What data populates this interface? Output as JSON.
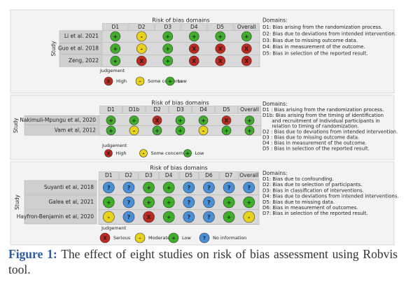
{
  "figure": {
    "panels": [
      {
        "title": "Risk of bias domains",
        "columns": [
          "D1",
          "D2",
          "D3",
          "D4",
          "D5",
          "Overall"
        ],
        "axis_label": "Study",
        "rows": [
          {
            "study": "Li et al. 2021",
            "judgements": [
              "+",
              "-",
              "+",
              "+",
              "+",
              "+"
            ]
          },
          {
            "study": "Guo et al. 2018",
            "judgements": [
              "+",
              "-",
              "+",
              "X",
              "X",
              "X"
            ]
          },
          {
            "study": "Zeng, 2022",
            "judgements": [
              "+",
              "X",
              "+",
              "X",
              "X",
              "X"
            ]
          }
        ],
        "judgement_label": "Judgement",
        "legend": [
          {
            "symbol": "X",
            "label": "High",
            "color": "#c0291f"
          },
          {
            "symbol": "-",
            "label": "Some concerns",
            "color": "#e8d21c"
          },
          {
            "symbol": "+",
            "label": "Low",
            "color": "#3fae2a"
          }
        ],
        "domains_title": "Domains:",
        "domains": [
          "D1: Bias arising from the randomization process.",
          "D2: Bias due to deviations from intended intervention.",
          "D3: Bias due to missing outcome data.",
          "D4: Bias in measurement of the outcome.",
          "D5: Bias in selection of the reported result."
        ]
      },
      {
        "title": "Risk of bias domains",
        "columns": [
          "D1",
          "D1b",
          "D2",
          "D3",
          "D4",
          "D5",
          "Overall"
        ],
        "axis_label": "Study",
        "rows": [
          {
            "study": "Nakimuli-Mpungu et al, 2020",
            "judgements": [
              "+",
              "+",
              "X",
              "+",
              "+",
              "X",
              "+"
            ]
          },
          {
            "study": "Vam et al, 2012",
            "judgements": [
              "+",
              "-",
              "+",
              "+",
              "-",
              "+",
              "+"
            ]
          }
        ],
        "judgement_label": "Judgement",
        "legend": [
          {
            "symbol": "X",
            "label": "High",
            "color": "#c0291f"
          },
          {
            "symbol": "-",
            "label": "Some concerns",
            "color": "#e8d21c"
          },
          {
            "symbol": "+",
            "label": "Low",
            "color": "#3fae2a"
          }
        ],
        "domains_title": "Domains:",
        "domains": [
          "D1 : Bias arising from the randomization process.",
          "D1b: Bias arising from the timing of identification",
          "      and recruitment of Individual participants in",
          "      relation to timing of randomization.",
          "D2 : Bias due to deviations from intended intervention.",
          "D3 : Bias due to missing outcome data.",
          "D4 : Bias in measurement of the outcome.",
          "D5 : Bias in selection of the reported result."
        ]
      },
      {
        "title": "Risk of bias domains",
        "columns": [
          "D1",
          "D2",
          "D3",
          "D4",
          "D5",
          "D6",
          "D7",
          "Overall"
        ],
        "axis_label": "Study",
        "rows": [
          {
            "study": "Suyanti et al, 2018",
            "judgements": [
              "?",
              "?",
              "+",
              "+",
              "?",
              "?",
              "?",
              "?"
            ]
          },
          {
            "study": "Galea et al, 2021",
            "judgements": [
              "+",
              "?",
              "+",
              "+",
              "?",
              "?",
              "+",
              "+"
            ]
          },
          {
            "study": "Hayfron-Benjamin et al, 2020",
            "judgements": [
              "-",
              "?",
              "X",
              "+",
              "?",
              "?",
              "+",
              "-"
            ]
          }
        ],
        "judgement_label": "Judgement",
        "legend": [
          {
            "symbol": "X",
            "label": "Serious",
            "color": "#c0291f"
          },
          {
            "symbol": "-",
            "label": "Moderate",
            "color": "#e8d21c"
          },
          {
            "symbol": "+",
            "label": "Low",
            "color": "#3fae2a"
          },
          {
            "symbol": "?",
            "label": "No information",
            "color": "#4a90d9"
          }
        ],
        "domains_title": "Domains:",
        "domains": [
          "D1: Bias due to confounding.",
          "D2: Bias due to selection of participants.",
          "D3: Bias in classification of interventions.",
          "D4: Bias due to deviations from intended interventions.",
          "D5: Bias due to missing data.",
          "D6: Bias in measurement of outcomes.",
          "D7: Bias in selection of the reported result."
        ]
      }
    ],
    "caption": {
      "label": "Figure 1:",
      "text": "The effect of eight studies on risk of bias assessment using Robvis tool."
    }
  }
}
